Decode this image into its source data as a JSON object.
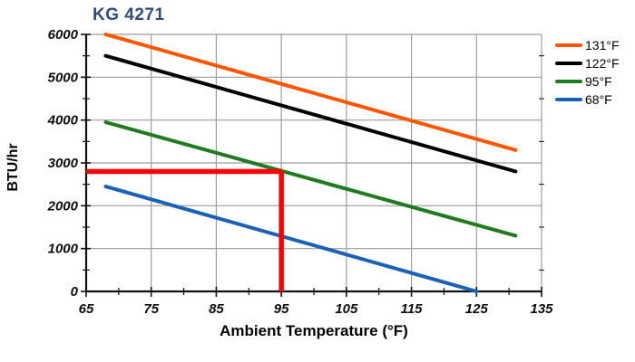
{
  "chart_data": {
    "type": "line",
    "title": "KG 4271",
    "title_color": "#2E4E7E",
    "xlabel": "Ambient Temperature (°F)",
    "ylabel": "BTU/hr",
    "xlim": [
      65,
      135
    ],
    "ylim": [
      0,
      6000
    ],
    "x_ticks": [
      65,
      75,
      85,
      95,
      105,
      115,
      125,
      135
    ],
    "x_minor_step": 5,
    "y_ticks": [
      0,
      1000,
      2000,
      3000,
      4000,
      5000,
      6000
    ],
    "y_minor_step": 500,
    "grid": true,
    "legend_position": "outside-top-right",
    "series": [
      {
        "name": "131°F",
        "color": "#FF5500",
        "points": [
          [
            68,
            6000
          ],
          [
            131,
            3300
          ]
        ]
      },
      {
        "name": "122°F",
        "color": "#000000",
        "points": [
          [
            68,
            5500
          ],
          [
            131,
            2800
          ]
        ]
      },
      {
        "name": "95°F",
        "color": "#1E7B1E",
        "points": [
          [
            68,
            3950
          ],
          [
            131,
            1300
          ]
        ]
      },
      {
        "name": "68°F",
        "color": "#1A62B5",
        "points": [
          [
            68,
            2450
          ],
          [
            125,
            0
          ]
        ]
      }
    ],
    "annotation": {
      "color": "#FF0000",
      "h_line": {
        "y": 2800,
        "x_from": 65,
        "x_to": 95
      },
      "v_line": {
        "x": 95,
        "y_from": 0,
        "y_to": 2800
      }
    }
  }
}
